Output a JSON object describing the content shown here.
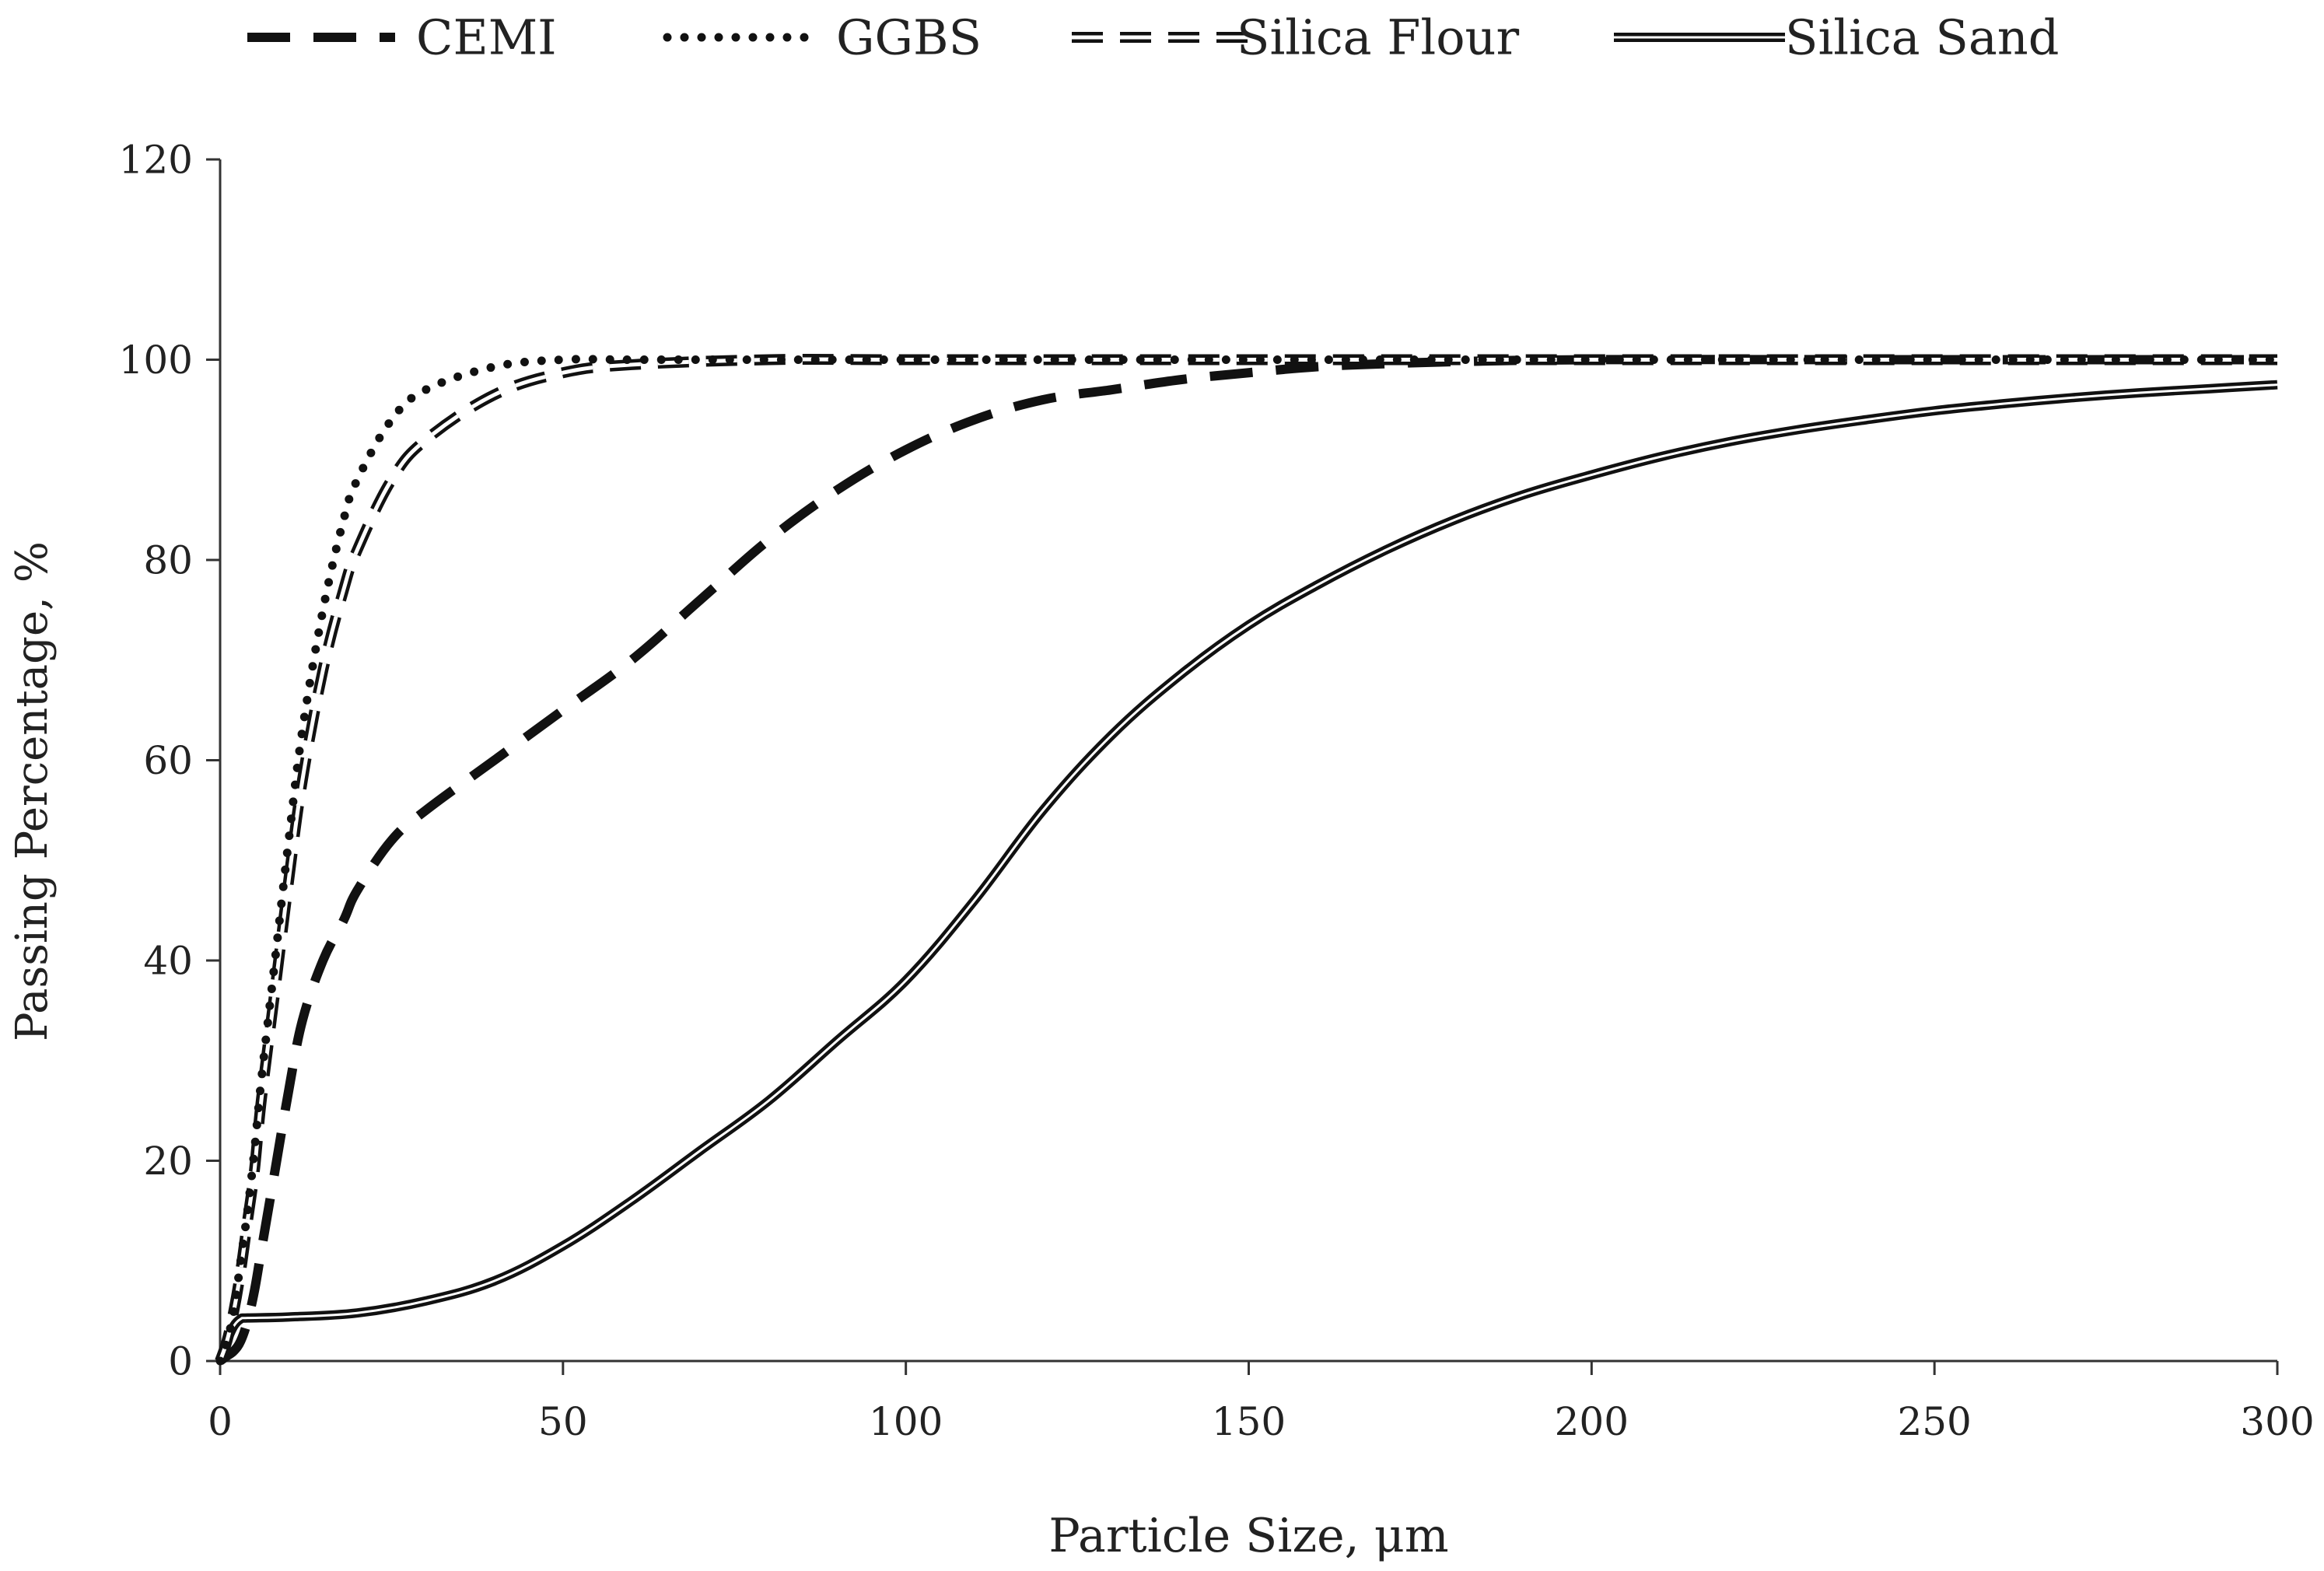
{
  "chart_data": {
    "type": "line",
    "title": "",
    "xlabel": "Particle Size, μm",
    "ylabel": "Passing Percentage, %",
    "xlim": [
      0,
      300
    ],
    "ylim": [
      0,
      120
    ],
    "xticks": [
      0,
      50,
      100,
      150,
      200,
      250,
      300
    ],
    "yticks": [
      0,
      20,
      40,
      60,
      80,
      100,
      120
    ],
    "xtick_labels": [
      "0",
      "50",
      "100",
      "150",
      "200",
      "250",
      "300"
    ],
    "ytick_labels": [
      "0",
      "20",
      "40",
      "60",
      "80",
      "100",
      "120"
    ],
    "grid": false,
    "legend_position": "top",
    "colors": {
      "series": "#111111",
      "axis": "#333333",
      "text": "#222222",
      "background": "#ffffff"
    },
    "series": [
      {
        "name": "CEMI",
        "style": "dashed",
        "x": [
          0,
          1,
          2,
          3,
          4,
          5,
          6,
          8,
          10,
          12,
          15,
          18,
          20,
          25,
          30,
          40,
          50,
          60,
          70,
          80,
          90,
          100,
          110,
          120,
          130,
          140,
          150,
          160,
          170,
          180,
          200,
          250,
          300
        ],
        "y": [
          0,
          0.5,
          1,
          2,
          4,
          7,
          11,
          19,
          27,
          34,
          40,
          44,
          47,
          52,
          55,
          60,
          65,
          70,
          76,
          82,
          87,
          91,
          94,
          96,
          97,
          98,
          98.7,
          99.3,
          99.6,
          99.8,
          100,
          100,
          100
        ]
      },
      {
        "name": "GGBS",
        "style": "dotted",
        "x": [
          0,
          1,
          2,
          3,
          4,
          5,
          6,
          8,
          10,
          12,
          15,
          18,
          20,
          25,
          30,
          40,
          50,
          60,
          80,
          100,
          150,
          200,
          250,
          300
        ],
        "y": [
          0,
          2,
          5,
          10,
          15,
          21,
          28,
          40,
          52,
          63,
          75,
          84,
          88,
          94,
          97,
          99.3,
          100,
          100,
          100,
          100,
          100,
          100,
          100,
          100
        ]
      },
      {
        "name": "Silica Flour",
        "style": "double-dashed",
        "x": [
          0,
          1,
          2,
          3,
          4,
          5,
          6,
          8,
          10,
          12,
          15,
          18,
          20,
          25,
          30,
          40,
          50,
          60,
          80,
          100,
          150,
          200,
          250,
          300
        ],
        "y": [
          0,
          2,
          5,
          9,
          14,
          19,
          26,
          37,
          48,
          58,
          69,
          77,
          81,
          88,
          92,
          96.5,
          98.7,
          99.5,
          100,
          100,
          100,
          100,
          100,
          100
        ]
      },
      {
        "name": "Silica Sand",
        "style": "double-solid",
        "x": [
          0,
          1,
          2,
          3,
          4,
          10,
          20,
          30,
          40,
          50,
          60,
          70,
          80,
          90,
          100,
          110,
          120,
          130,
          140,
          150,
          160,
          170,
          180,
          190,
          200,
          210,
          220,
          230,
          240,
          250,
          260,
          270,
          280,
          290,
          300
        ],
        "y": [
          0,
          2,
          3.5,
          4.2,
          4.3,
          4.4,
          4.8,
          6,
          8,
          11.5,
          16,
          21,
          26,
          32,
          38,
          46,
          55,
          62.5,
          68.5,
          73.5,
          77.5,
          81,
          84,
          86.5,
          88.5,
          90.3,
          91.8,
          93,
          94,
          94.9,
          95.6,
          96.2,
          96.7,
          97.1,
          97.5
        ]
      }
    ]
  }
}
